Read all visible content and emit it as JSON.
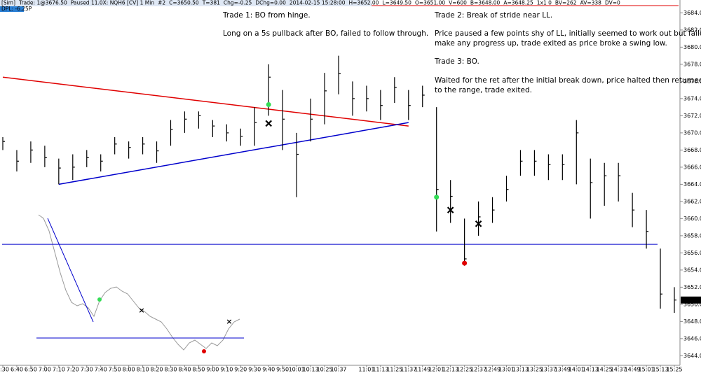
{
  "header": {
    "status": [
      "[Sim]",
      "Trade: 1@3676.50",
      "Paused 11.0X: NQH6 [CV] 1 Min",
      "#2",
      "C=3650.50",
      "T=381",
      "Chg=-0.25",
      "DChg=0.00",
      "2014-02-15 15:28:00",
      "H=3652.00",
      "L=3649.50",
      "O=3651.00",
      "V=600",
      "B=3648.00",
      "A=3648.25",
      "1x1 0",
      "BV=262",
      "AV=338",
      "DV=0"
    ],
    "dpl": "DPL: -6.25P"
  },
  "annotations": {
    "trade1": [
      "Trade 1:  BO from hinge.",
      "Long on a 5s pullback after BO, failed to follow through."
    ],
    "trade2": [
      "Trade 2:  Break of stride near LL.",
      "Price paused a few points shy of LL, initially seemed to work out but failed to",
      "make any progress up, trade exited as price broke a swing low.",
      "Trade 3:  BO.",
      "Waited for the ret after the initial break down, price halted then returned",
      "to the range, trade exited."
    ]
  },
  "chart_data": {
    "type": "ohlc",
    "categories": [
      "6:30",
      "6:40",
      "6:50",
      "7:00",
      "7:10",
      "7:20",
      "7:30",
      "7:40",
      "7:50",
      "8:00",
      "8:10",
      "8:20",
      "8:30",
      "8:40",
      "8:50",
      "9:00",
      "9:10",
      "9:20",
      "9:30",
      "9:40",
      "9:50",
      "10:01",
      "10:13",
      "10:25",
      "10:37",
      null,
      "11:01",
      "11:13",
      "11:25",
      "11:37",
      "11:49",
      "12:01",
      "12:13",
      "12:25",
      "12:37",
      "12:49",
      "13:01",
      "13:13",
      "13:25",
      "13:37",
      "13:49",
      "14:01",
      "14:13",
      "14:25",
      "14:37",
      "14:49",
      "15:01",
      "15:13",
      "15:25"
    ],
    "high": [
      3669.5,
      3668,
      3669,
      3668.5,
      3667,
      3667.5,
      3668,
      3667.5,
      3669.5,
      3669,
      3669.5,
      3669,
      3671.5,
      3672.5,
      3672.5,
      3671.5,
      3671,
      3670.5,
      3673,
      3678,
      3675,
      3670,
      3674,
      3677,
      3679,
      3676,
      3675.5,
      3675,
      3676.5,
      3675,
      3675.5,
      3673,
      3664.5,
      3660,
      3662,
      3662.5,
      3665,
      3668,
      3668,
      3667.5,
      3667.5,
      3671.5,
      3667,
      3666.5,
      3666.5,
      3663,
      3661,
      3656.5,
      3652
    ],
    "low": [
      3668,
      3665.5,
      3666.5,
      3666,
      3664,
      3664.5,
      3666,
      3665.5,
      3667.5,
      3667,
      3667.5,
      3666.5,
      3668.5,
      3670,
      3670.5,
      3669.5,
      3669,
      3668.5,
      3668.5,
      3672,
      3668,
      3662.5,
      3669,
      3671,
      3674.5,
      3672,
      3672.5,
      3671.5,
      3673.5,
      3671.5,
      3673,
      3658.5,
      3659.5,
      3654.5,
      3658,
      3659.5,
      3662,
      3665,
      3665,
      3664.5,
      3664.5,
      3664,
      3660,
      3661.5,
      3662,
      3659,
      3656.5,
      3649.5,
      3649
    ],
    "close": [
      3669,
      3666.7,
      3668,
      3667.1,
      3665.9,
      3666,
      3667.1,
      3666.7,
      3668.7,
      3668.3,
      3668.7,
      3667.9,
      3670.4,
      3671.6,
      3672,
      3670.8,
      3670,
      3669.6,
      3671.2,
      3676.5,
      3671.6,
      3667.5,
      3671.6,
      3674.9,
      3676.9,
      3674,
      3674,
      3673.2,
      3675.3,
      3673.2,
      3674.4,
      3663.4,
      3662.6,
      3655.3,
      3660.2,
      3661,
      3663.4,
      3666.7,
      3666.7,
      3666.3,
      3666.3,
      3670,
      3664.2,
      3665,
      3665,
      3661,
      3658.5,
      3651.2,
      3650.5
    ],
    "color": "#000000",
    "ylim": [
      3643,
      3685.5
    ],
    "yticks": [
      {
        "value": 3644,
        "label": "3644.00"
      },
      {
        "value": 3646,
        "label": "3646.00"
      },
      {
        "value": 3648,
        "label": "3648.00"
      },
      {
        "value": 3650,
        "label": "3650.00"
      },
      {
        "value": 3652,
        "label": "3652.00"
      },
      {
        "value": 3654,
        "label": "3654.00"
      },
      {
        "value": 3656,
        "label": "3656.00"
      },
      {
        "value": 3658,
        "label": "3658.00"
      },
      {
        "value": 3660,
        "label": "3660.00"
      },
      {
        "value": 3662,
        "label": "3662.00"
      },
      {
        "value": 3664,
        "label": "3664.00"
      },
      {
        "value": 3666,
        "label": "3666.00"
      },
      {
        "value": 3668,
        "label": "3668.00"
      },
      {
        "value": 3670,
        "label": "3670.00"
      },
      {
        "value": 3672,
        "label": "3672.00"
      },
      {
        "value": 3674,
        "label": "3674.00"
      },
      {
        "value": 3676,
        "label": "3676.00"
      },
      {
        "value": 3678,
        "label": "3678.00"
      },
      {
        "value": 3680,
        "label": "3680.00"
      },
      {
        "value": 3682,
        "label": "3682.00"
      },
      {
        "value": 3684,
        "label": "3684.00"
      }
    ],
    "last_price": {
      "value": 3650.5,
      "label": "3650.50"
    },
    "level": {
      "value": 3657,
      "color": "#0000cc"
    },
    "trendlines": [
      {
        "color": "#e00000",
        "from": "6:30",
        "to": "11:37",
        "values": [
          3676.5,
          3670.8
        ]
      },
      {
        "color": "#0000cc",
        "from": "7:10",
        "to": "11:37",
        "values": [
          3664,
          3671.2
        ]
      }
    ],
    "markers": [
      {
        "at": "9:40",
        "value": 3673.3,
        "symbol": "dot",
        "color": "#33dd55"
      },
      {
        "at": "9:40",
        "value": 3671.1,
        "symbol": "x",
        "color": "#000000"
      },
      {
        "at": "12:01",
        "value": 3662.5,
        "symbol": "dot",
        "color": "#33dd55"
      },
      {
        "at": "12:13",
        "value": 3661,
        "symbol": "x",
        "color": "#000000"
      },
      {
        "at": "12:25",
        "value": 3654.8,
        "symbol": "dot",
        "color": "#e00000"
      },
      {
        "at": "12:37",
        "value": 3659.4,
        "symbol": "x",
        "color": "#000000"
      }
    ]
  }
}
